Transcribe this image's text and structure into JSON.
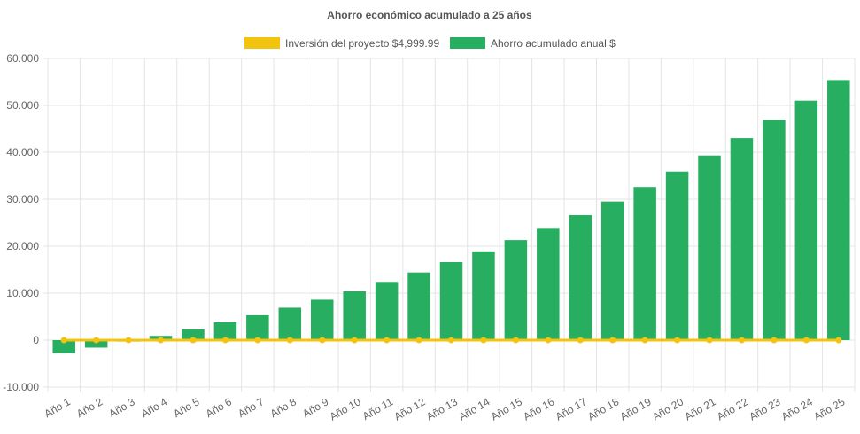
{
  "chart_data": {
    "type": "bar",
    "title": "Ahorro económico acumulado a 25 años",
    "legend_position": "top",
    "grid": true,
    "categories": [
      "Año 1",
      "Año 2",
      "Año 3",
      "Año 4",
      "Año 5",
      "Año 6",
      "Año 7",
      "Año 8",
      "Año 9",
      "Año 10",
      "Año 11",
      "Año 12",
      "Año 13",
      "Año 14",
      "Año 15",
      "Año 16",
      "Año 17",
      "Año 18",
      "Año 19",
      "Año 20",
      "Año 21",
      "Año 22",
      "Año 23",
      "Año 24",
      "Año 25"
    ],
    "ylim": [
      -10000,
      60000
    ],
    "yticks": [
      -10000,
      0,
      10000,
      20000,
      30000,
      40000,
      50000,
      60000
    ],
    "ytick_labels": [
      "-10.000",
      "0",
      "10.000",
      "20.000",
      "30.000",
      "40.000",
      "50.000",
      "60.000"
    ],
    "series": [
      {
        "name": "Inversión del proyecto $4,999.99",
        "type": "line",
        "color": "#f2c40f",
        "values": [
          0,
          0,
          0,
          0,
          0,
          0,
          0,
          0,
          0,
          0,
          0,
          0,
          0,
          0,
          0,
          0,
          0,
          0,
          0,
          0,
          0,
          0,
          0,
          0,
          0
        ]
      },
      {
        "name": "Ahorro acumulado anual $",
        "type": "bar",
        "color": "#27ae60",
        "values": [
          -2800,
          -1600,
          -300,
          900,
          2300,
          3800,
          5300,
          6900,
          8600,
          10400,
          12400,
          14400,
          16600,
          18900,
          21300,
          23900,
          26600,
          29500,
          32600,
          35900,
          39300,
          43000,
          46900,
          51000,
          55400
        ]
      }
    ]
  }
}
